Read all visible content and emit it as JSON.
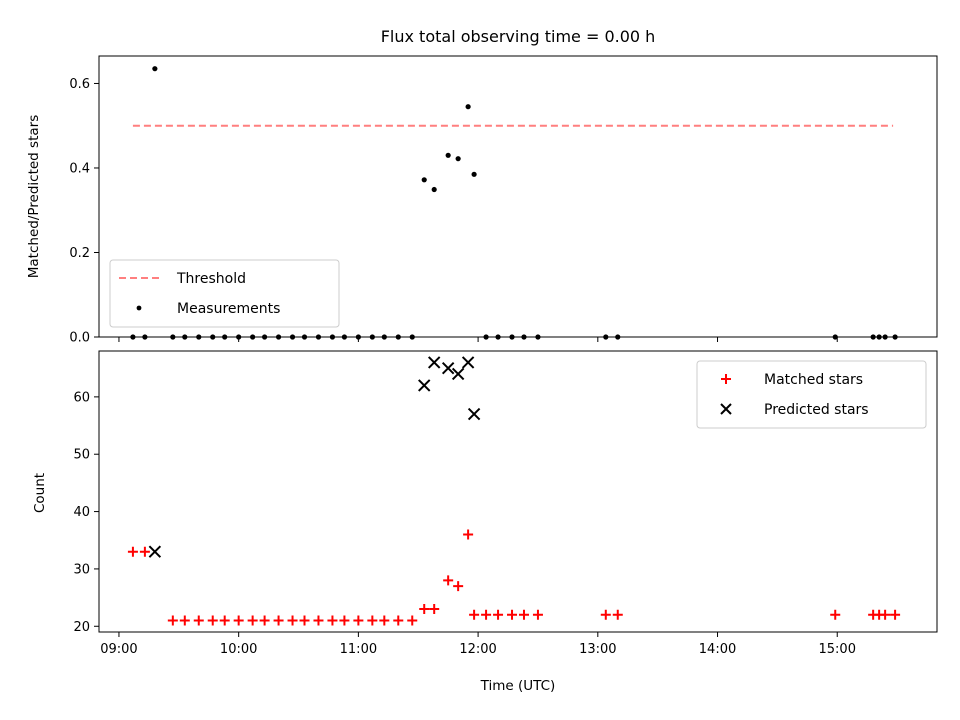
{
  "chart_data": [
    {
      "type": "scatter",
      "title": "Flux total observing time = 0.00 h",
      "xlabel": "",
      "ylabel": "Matched/Predicted stars",
      "ylim": [
        0,
        0.665
      ],
      "xlim": [
        "08:50",
        "15:50"
      ],
      "yticks": [
        0.0,
        0.2,
        0.4,
        0.6
      ],
      "yticklabels": [
        "0.0",
        "0.2",
        "0.4",
        "0.6"
      ],
      "legend_position": "lower-left",
      "grid": false,
      "series": [
        {
          "name": "Threshold",
          "style": "dashed-line",
          "color": "#ff7f7f",
          "x": [
            "09:07",
            "15:28"
          ],
          "y": [
            0.5,
            0.5
          ]
        },
        {
          "name": "Measurements",
          "style": "dot",
          "color": "#000000",
          "x": [
            "09:07",
            "09:13",
            "09:18",
            "09:27",
            "09:33",
            "09:40",
            "09:47",
            "09:53",
            "10:00",
            "10:07",
            "10:13",
            "10:20",
            "10:27",
            "10:33",
            "10:40",
            "10:47",
            "10:53",
            "11:00",
            "11:07",
            "11:13",
            "11:20",
            "11:27",
            "11:33",
            "11:38",
            "11:45",
            "11:50",
            "11:55",
            "11:58",
            "12:04",
            "12:10",
            "12:17",
            "12:23",
            "12:30",
            "13:04",
            "13:10",
            "14:59",
            "15:18",
            "15:21",
            "15:24",
            "15:29"
          ],
          "y": [
            0.0,
            0.0,
            0.635,
            0.0,
            0.0,
            0.0,
            0.0,
            0.0,
            0.0,
            0.0,
            0.0,
            0.0,
            0.0,
            0.0,
            0.0,
            0.0,
            0.0,
            0.0,
            0.0,
            0.0,
            0.0,
            0.0,
            0.372,
            0.349,
            0.43,
            0.422,
            0.545,
            0.385,
            0.0,
            0.0,
            0.0,
            0.0,
            0.0,
            0.0,
            0.0,
            0.0,
            0.0,
            0.0,
            0.0,
            0.0
          ]
        }
      ]
    },
    {
      "type": "scatter",
      "title": "",
      "xlabel": "Time (UTC)",
      "ylabel": "Count",
      "ylim": [
        19,
        68
      ],
      "xlim": [
        "08:50",
        "15:50"
      ],
      "xticks": [
        "09:00",
        "10:00",
        "11:00",
        "12:00",
        "13:00",
        "14:00",
        "15:00"
      ],
      "xticklabels": [
        "09:00",
        "10:00",
        "11:00",
        "12:00",
        "13:00",
        "14:00",
        "15:00"
      ],
      "yticks": [
        20,
        30,
        40,
        50,
        60
      ],
      "yticklabels": [
        "20",
        "30",
        "40",
        "50",
        "60"
      ],
      "legend_position": "upper-right",
      "grid": false,
      "series": [
        {
          "name": "Matched stars",
          "style": "plus",
          "color": "#ff0000",
          "x": [
            "09:07",
            "09:13",
            "09:27",
            "09:33",
            "09:40",
            "09:47",
            "09:53",
            "10:00",
            "10:07",
            "10:13",
            "10:20",
            "10:27",
            "10:33",
            "10:40",
            "10:47",
            "10:53",
            "11:00",
            "11:07",
            "11:13",
            "11:20",
            "11:27",
            "11:33",
            "11:38",
            "11:45",
            "11:50",
            "11:55",
            "11:58",
            "12:04",
            "12:10",
            "12:17",
            "12:23",
            "12:30",
            "13:04",
            "13:10",
            "14:59",
            "15:18",
            "15:21",
            "15:24",
            "15:29"
          ],
          "y": [
            33,
            33,
            21,
            21,
            21,
            21,
            21,
            21,
            21,
            21,
            21,
            21,
            21,
            21,
            21,
            21,
            21,
            21,
            21,
            21,
            21,
            23,
            23,
            28,
            27,
            36,
            22,
            22,
            22,
            22,
            22,
            22,
            22,
            22,
            22,
            22,
            22,
            22,
            22
          ]
        },
        {
          "name": "Predicted stars",
          "style": "x",
          "color": "#000000",
          "x": [
            "09:18",
            "11:33",
            "11:38",
            "11:45",
            "11:50",
            "11:55",
            "11:58"
          ],
          "y": [
            33,
            62,
            66,
            65,
            64,
            66,
            57
          ]
        }
      ]
    }
  ]
}
